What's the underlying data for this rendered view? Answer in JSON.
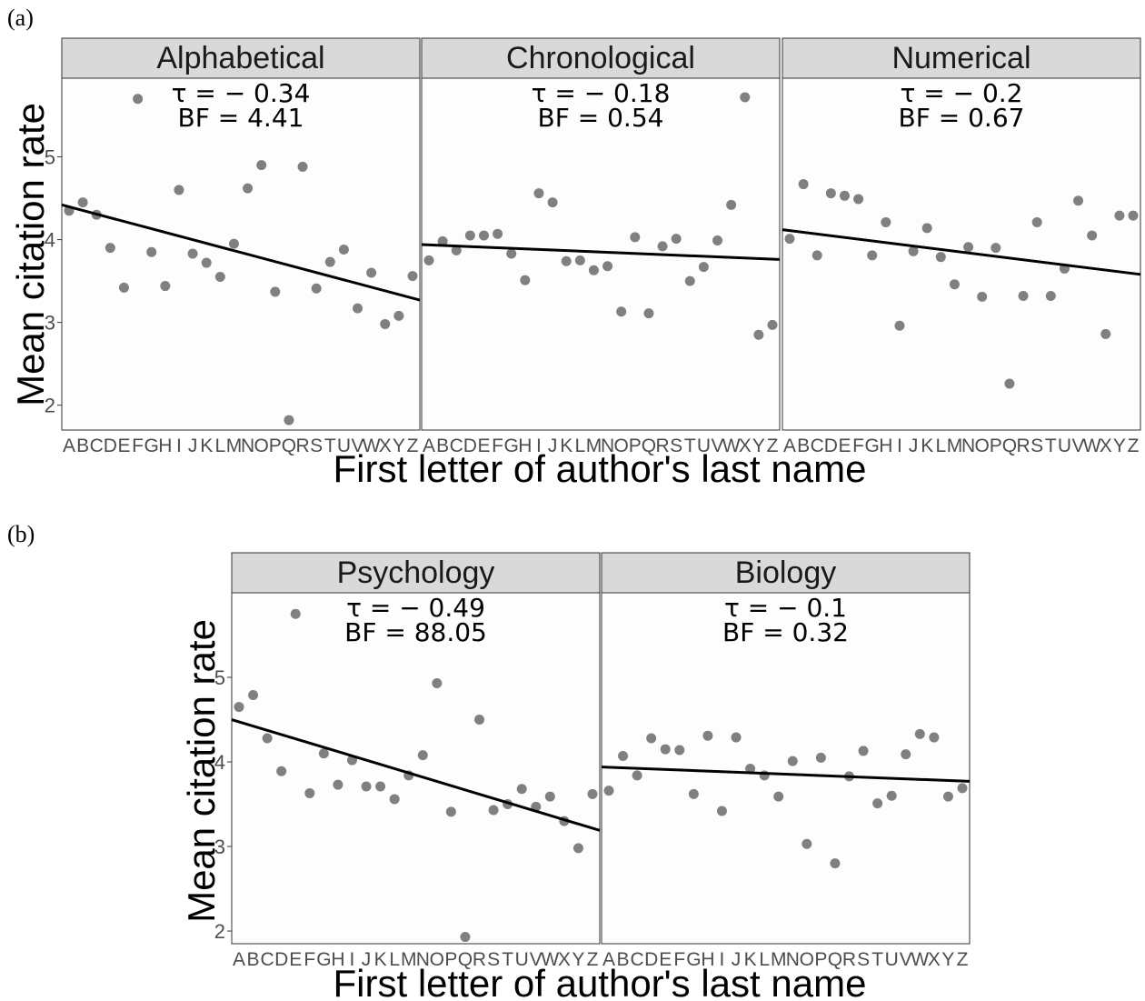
{
  "figure": {
    "letters": [
      "A",
      "B",
      "C",
      "D",
      "E",
      "F",
      "G",
      "H",
      "I",
      "J",
      "K",
      "L",
      "M",
      "N",
      "O",
      "P",
      "Q",
      "R",
      "S",
      "T",
      "U",
      "V",
      "W",
      "X",
      "Y",
      "Z"
    ],
    "yticks": [
      2,
      3,
      4,
      5
    ],
    "ylabel": "Mean citation rate",
    "xlabel": "First letter of author's last name"
  },
  "chart_data": [
    {
      "type": "scatter",
      "panel_label": "(a)",
      "facets": [
        {
          "title": "Alphabetical",
          "tau": "τ = − 0.34",
          "bf": "BF = 4.41",
          "values": [
            4.35,
            4.45,
            4.3,
            3.9,
            3.42,
            5.7,
            3.85,
            3.44,
            4.6,
            3.83,
            3.72,
            3.55,
            3.95,
            4.62,
            4.9,
            3.37,
            1.82,
            4.88,
            3.41,
            3.73,
            3.88,
            3.17,
            3.6,
            2.98,
            3.08,
            3.56
          ],
          "fit": [
            4.42,
            3.27
          ]
        },
        {
          "title": "Chronological",
          "tau": "τ = − 0.18",
          "bf": "BF = 0.54",
          "values": [
            3.75,
            3.98,
            3.87,
            4.05,
            4.05,
            4.07,
            3.83,
            3.51,
            4.56,
            4.45,
            3.74,
            3.75,
            3.63,
            3.68,
            3.13,
            4.03,
            3.11,
            3.92,
            4.01,
            3.5,
            3.67,
            3.99,
            4.42,
            5.72,
            2.85,
            2.97
          ],
          "fit": [
            3.94,
            3.76
          ]
        },
        {
          "title": "Numerical",
          "tau": "τ = − 0.2",
          "bf": "BF = 0.67",
          "values": [
            4.01,
            4.67,
            3.81,
            4.56,
            4.53,
            4.49,
            3.81,
            4.21,
            2.96,
            3.86,
            4.14,
            3.79,
            3.46,
            3.91,
            3.31,
            3.9,
            2.26,
            3.32,
            4.21,
            3.32,
            3.65,
            4.47,
            4.05,
            2.86,
            4.29,
            4.29
          ],
          "fit": [
            4.12,
            3.58
          ]
        }
      ]
    },
    {
      "type": "scatter",
      "panel_label": "(b)",
      "facets": [
        {
          "title": "Psychology",
          "tau": "τ = − 0.49",
          "bf": "BF = 88.05",
          "values": [
            4.65,
            4.79,
            4.28,
            3.89,
            5.75,
            3.63,
            4.1,
            3.73,
            4.02,
            3.71,
            3.71,
            3.56,
            3.84,
            4.08,
            4.93,
            3.41,
            1.93,
            4.5,
            3.43,
            3.5,
            3.68,
            3.47,
            3.59,
            3.3,
            2.98,
            3.62
          ],
          "fit": [
            4.5,
            3.19
          ]
        },
        {
          "title": "Biology",
          "tau": "τ = − 0.1",
          "bf": "BF = 0.32",
          "values": [
            3.66,
            4.07,
            3.84,
            4.28,
            4.15,
            4.14,
            3.62,
            4.31,
            3.42,
            4.29,
            3.92,
            3.84,
            3.59,
            4.01,
            3.03,
            4.05,
            2.8,
            3.83,
            4.13,
            3.51,
            3.6,
            4.09,
            4.33,
            4.29,
            3.59,
            3.69
          ],
          "fit": [
            3.94,
            3.77
          ]
        }
      ]
    }
  ]
}
